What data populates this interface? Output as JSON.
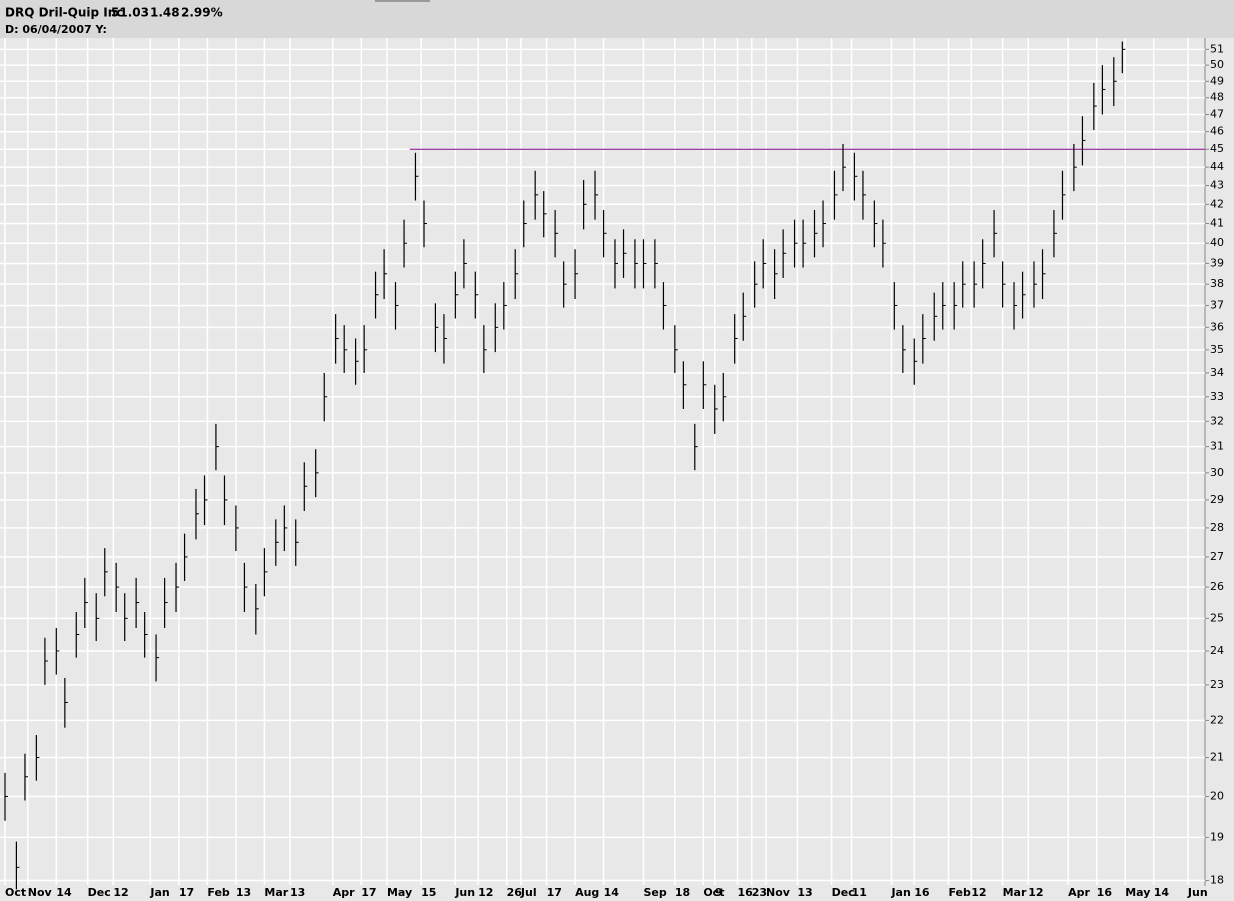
{
  "chart_data": {
    "type": "range",
    "header": {
      "name": "DRQ Dril-Quip Inc",
      "price": "51.03",
      "change": "1.48",
      "change_pct": "2.99%",
      "date_label": "D: 06/04/2007 Y:"
    },
    "change_color": "#00b000",
    "bar_color": "#000000",
    "log_scale": true,
    "grid": true,
    "ylim": [
      17.9,
      51.6
    ],
    "yticks": [
      18,
      19,
      20,
      21,
      22,
      23,
      24,
      25,
      26,
      27,
      28,
      29,
      30,
      31,
      32,
      33,
      34,
      35,
      36,
      37,
      38,
      39,
      40,
      41,
      42,
      43,
      44,
      45,
      46,
      47,
      48,
      49,
      50,
      51
    ],
    "xlim": [
      0,
      421
    ],
    "xticks": [
      {
        "value": 0,
        "label": "Oct"
      },
      {
        "value": 8,
        "label": "Nov"
      },
      {
        "value": 18,
        "label": "14"
      },
      {
        "value": 29,
        "label": "Dec"
      },
      {
        "value": 38,
        "label": "12"
      },
      {
        "value": 51,
        "label": "Jan"
      },
      {
        "value": 61,
        "label": "17"
      },
      {
        "value": 71,
        "label": "Feb"
      },
      {
        "value": 81,
        "label": "13"
      },
      {
        "value": 91,
        "label": "Mar"
      },
      {
        "value": 100,
        "label": "13"
      },
      {
        "value": 115,
        "label": "Apr"
      },
      {
        "value": 125,
        "label": "17"
      },
      {
        "value": 134,
        "label": "May"
      },
      {
        "value": 146,
        "label": "15"
      },
      {
        "value": 158,
        "label": "Jun"
      },
      {
        "value": 166,
        "label": "12"
      },
      {
        "value": 176,
        "label": "26"
      },
      {
        "value": 181,
        "label": "Jul"
      },
      {
        "value": 190,
        "label": "17"
      },
      {
        "value": 200,
        "label": "Aug"
      },
      {
        "value": 210,
        "label": "14"
      },
      {
        "value": 224,
        "label": "Sep"
      },
      {
        "value": 235,
        "label": "18"
      },
      {
        "value": 245,
        "label": "Oct"
      },
      {
        "value": 249,
        "label": "9"
      },
      {
        "value": 257,
        "label": "16"
      },
      {
        "value": 262,
        "label": "23"
      },
      {
        "value": 267,
        "label": "Nov"
      },
      {
        "value": 278,
        "label": "13"
      },
      {
        "value": 290,
        "label": "Dec"
      },
      {
        "value": 297,
        "label": "11"
      },
      {
        "value": 311,
        "label": "Jan"
      },
      {
        "value": 319,
        "label": "16"
      },
      {
        "value": 331,
        "label": "Feb"
      },
      {
        "value": 339,
        "label": "12"
      },
      {
        "value": 350,
        "label": "Mar"
      },
      {
        "value": 359,
        "label": "12"
      },
      {
        "value": 373,
        "label": "Apr"
      },
      {
        "value": 383,
        "label": "16"
      },
      {
        "value": 393,
        "label": "May"
      },
      {
        "value": 403,
        "label": "14"
      },
      {
        "value": 415,
        "label": "Jun"
      }
    ],
    "hline": {
      "value": 45,
      "start": 142,
      "color": "#800080"
    },
    "x": [
      0,
      4,
      7,
      11,
      14,
      18,
      21,
      25,
      28,
      32,
      35,
      39,
      42,
      46,
      49,
      53,
      56,
      60,
      63,
      67,
      70,
      74,
      77,
      81,
      84,
      88,
      91,
      95,
      98,
      102,
      105,
      109,
      112,
      116,
      119,
      123,
      126,
      130,
      133,
      137,
      140,
      144,
      147,
      151,
      154,
      158,
      161,
      165,
      168,
      172,
      175,
      179,
      182,
      186,
      189,
      193,
      196,
      200,
      203,
      207,
      210,
      214,
      217,
      221,
      224,
      228,
      231,
      235,
      238,
      242,
      245,
      249,
      252,
      256,
      259,
      263,
      266,
      270,
      273,
      277,
      280,
      284,
      287,
      291,
      294,
      298,
      301,
      305,
      308,
      312,
      315,
      319,
      322,
      326,
      329,
      333,
      336,
      340,
      343,
      347,
      350,
      354,
      357,
      361,
      364,
      368,
      371,
      375,
      378,
      382,
      385,
      389,
      392
    ],
    "close": [
      20,
      18.3,
      20.5,
      21,
      23.7,
      24,
      22.5,
      24.5,
      25.5,
      25,
      26.5,
      26,
      25,
      25.5,
      24.5,
      23.8,
      25.5,
      26,
      27,
      28.5,
      29,
      31,
      29,
      28,
      26,
      25.3,
      26.5,
      27.5,
      28,
      27.5,
      29.5,
      30,
      33,
      35.5,
      35,
      34.5,
      35,
      37.5,
      38.5,
      37,
      40,
      43.5,
      41,
      36,
      35.5,
      37.5,
      39,
      37.5,
      35,
      36,
      37,
      38.5,
      41,
      42.5,
      41.5,
      40.5,
      38,
      38.5,
      42,
      42.5,
      40.5,
      39,
      39.5,
      39,
      39,
      39,
      37,
      35,
      33.5,
      31,
      33.5,
      32.5,
      33,
      35.5,
      36.5,
      38,
      39,
      38.5,
      39.5,
      40,
      40,
      40.5,
      41,
      42.5,
      44,
      43.5,
      42.5,
      41,
      40,
      37,
      35,
      34.5,
      35.5,
      36.5,
      37,
      37,
      38,
      38,
      39,
      40.5,
      38,
      37,
      37.5,
      38,
      38.5,
      40.5,
      42.5,
      44,
      45.5,
      47.5,
      48.5,
      49,
      51
    ],
    "high": [
      20.6,
      18.9,
      21.1,
      21.6,
      24.4,
      24.7,
      23.2,
      25.2,
      26.3,
      25.8,
      27.3,
      26.8,
      25.8,
      26.3,
      25.2,
      24.5,
      26.3,
      26.8,
      27.8,
      29.4,
      29.9,
      31.9,
      29.9,
      28.8,
      26.8,
      26.1,
      27.3,
      28.3,
      28.8,
      28.3,
      30.4,
      30.9,
      34,
      36.6,
      36.1,
      35.5,
      36.1,
      38.6,
      39.7,
      38.1,
      41.2,
      44.8,
      42.2,
      37.1,
      36.6,
      38.6,
      40.2,
      38.6,
      36.1,
      37.1,
      38.1,
      39.7,
      42.2,
      43.8,
      42.7,
      41.7,
      39.1,
      39.7,
      43.3,
      43.8,
      41.7,
      40.2,
      40.7,
      40.2,
      40.2,
      40.2,
      38.1,
      36.1,
      34.5,
      31.9,
      34.5,
      33.5,
      34,
      36.6,
      37.6,
      39.1,
      40.2,
      39.7,
      40.7,
      41.2,
      41.2,
      41.7,
      42.2,
      43.8,
      45.3,
      44.8,
      43.8,
      42.2,
      41.2,
      38.1,
      36.1,
      35.5,
      36.6,
      37.6,
      38.1,
      38.1,
      39.1,
      39.1,
      40.2,
      41.7,
      39.1,
      38.1,
      38.6,
      39.1,
      39.7,
      41.7,
      43.8,
      45.3,
      46.9,
      48.9,
      50,
      50.5,
      51.5
    ],
    "low": [
      19.4,
      17.8,
      19.9,
      20.4,
      23,
      23.3,
      21.8,
      23.8,
      24.7,
      24.3,
      25.7,
      25.2,
      24.3,
      24.7,
      23.8,
      23.1,
      24.7,
      25.2,
      26.2,
      27.6,
      28.1,
      30.1,
      28.1,
      27.2,
      25.2,
      24.5,
      25.7,
      26.7,
      27.2,
      26.7,
      28.6,
      29.1,
      32,
      34.4,
      34,
      33.5,
      34,
      36.4,
      37.3,
      35.9,
      38.8,
      42.2,
      39.8,
      34.9,
      34.4,
      36.4,
      37.8,
      36.4,
      34,
      34.9,
      35.9,
      37.3,
      39.8,
      41.2,
      40.3,
      39.3,
      36.9,
      37.3,
      40.7,
      41.2,
      39.3,
      37.8,
      38.3,
      37.8,
      37.8,
      37.8,
      35.9,
      34,
      32.5,
      30.1,
      32.5,
      31.5,
      32,
      34.4,
      35.4,
      36.9,
      37.8,
      37.3,
      38.3,
      38.8,
      38.8,
      39.3,
      39.8,
      41.2,
      42.7,
      42.2,
      41.2,
      39.8,
      38.8,
      35.9,
      34,
      33.5,
      34.4,
      35.4,
      35.9,
      35.9,
      36.9,
      36.9,
      37.8,
      39.3,
      36.9,
      35.9,
      36.4,
      36.9,
      37.3,
      39.3,
      41.2,
      42.7,
      44.1,
      46.1,
      47,
      47.5,
      49.5
    ]
  }
}
